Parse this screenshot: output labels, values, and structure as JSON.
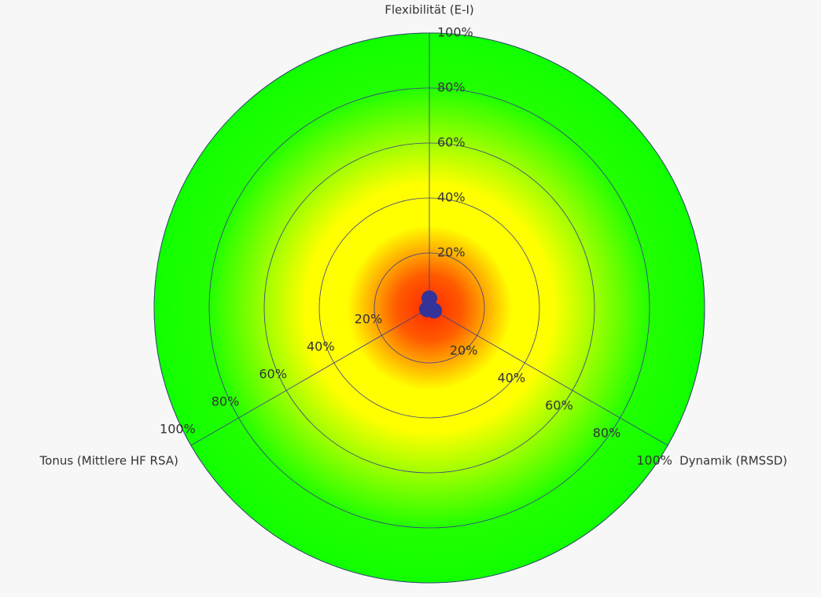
{
  "chart_data": {
    "type": "radar",
    "categories": [
      "Flexibilität (E-I)",
      "Dynamik (RMSSD)",
      "Tonus (Mittlere HF RSA)"
    ],
    "values": [
      3.5,
      2,
      1
    ],
    "color": "#333399",
    "rlim": [
      0,
      100
    ],
    "rticks": [
      {
        "value": 20,
        "label": "20%"
      },
      {
        "value": 40,
        "label": "40%"
      },
      {
        "value": 60,
        "label": "60%"
      },
      {
        "value": 80,
        "label": "80%"
      },
      {
        "value": 100,
        "label": "100%"
      }
    ],
    "grid": true
  }
}
